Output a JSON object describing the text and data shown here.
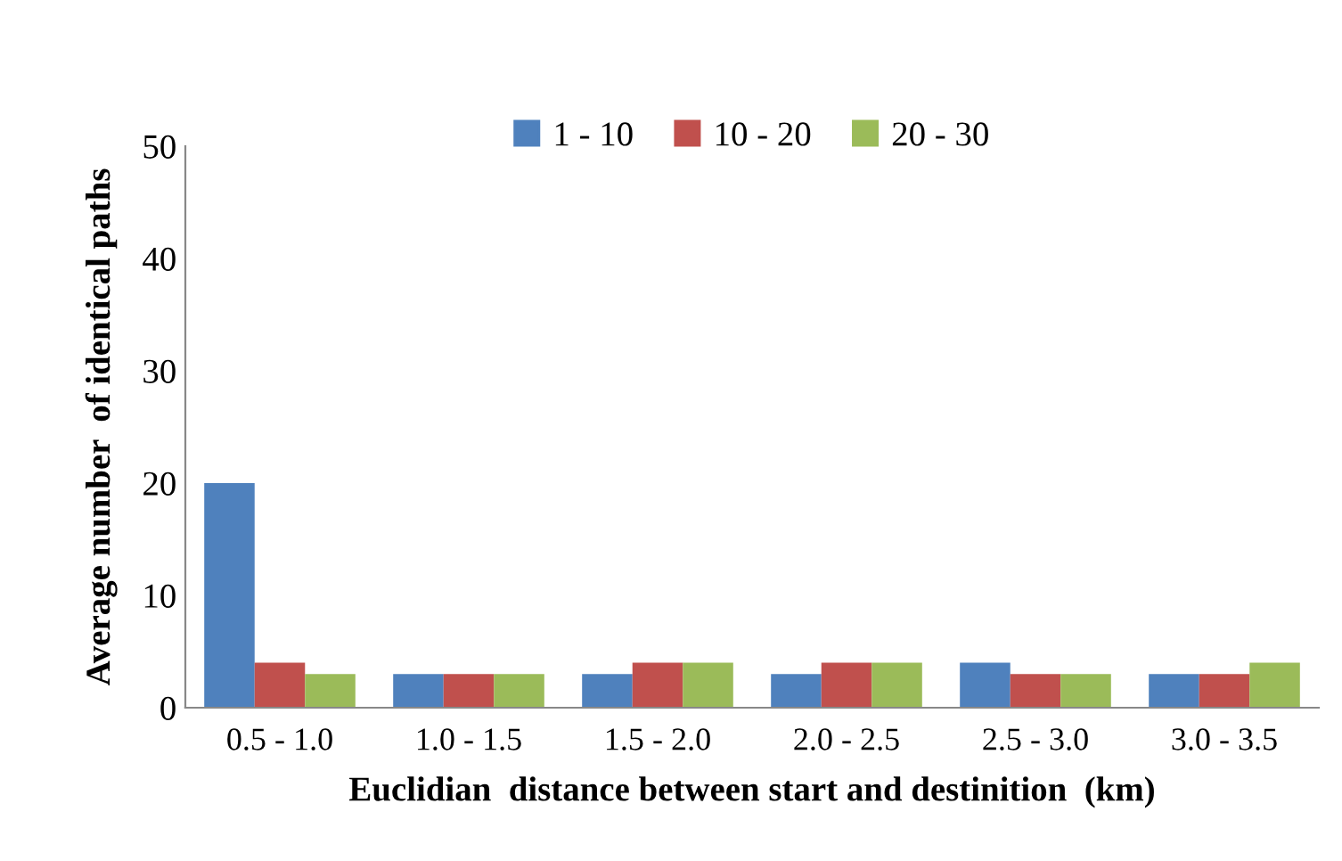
{
  "chart_data": {
    "type": "bar",
    "xlabel": "Euclidian  distance between start and destinition  (km)",
    "ylabel": "Average number  of identical paths",
    "categories": [
      "0.5 - 1.0",
      "1.0 - 1.5",
      "1.5 - 2.0",
      "2.0 - 2.5",
      "2.5 - 3.0",
      "3.0 - 3.5"
    ],
    "series": [
      {
        "name": "1 - 10",
        "color": "#4f81bd",
        "values": [
          20,
          3,
          3,
          3,
          4,
          3
        ]
      },
      {
        "name": "10 - 20",
        "color": "#c0504d",
        "values": [
          4,
          3,
          4,
          4,
          3,
          3
        ]
      },
      {
        "name": "20 - 30",
        "color": "#9bbb59",
        "values": [
          3,
          3,
          4,
          4,
          3,
          4
        ]
      }
    ],
    "ylim": [
      0,
      50
    ],
    "yticks": [
      0,
      10,
      20,
      30,
      40,
      50
    ],
    "grid": false,
    "legend": "top"
  }
}
